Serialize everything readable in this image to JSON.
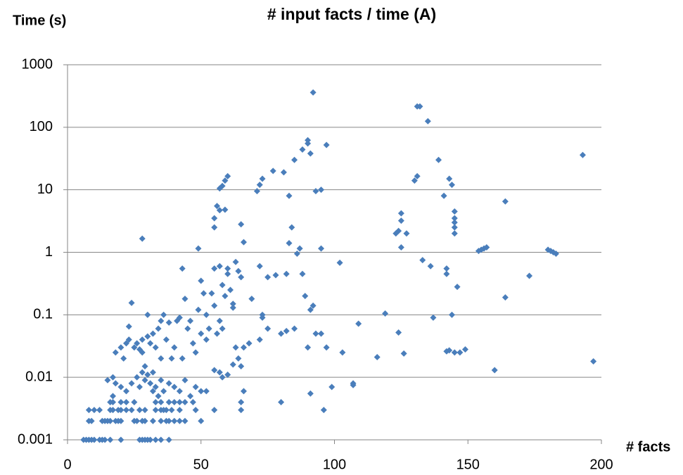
{
  "chart_data": {
    "type": "scatter",
    "title": "# input facts / time (A)",
    "y_label": "Time (s)",
    "x_label": "# facts",
    "log_y": true,
    "grid": true,
    "color": "#4a7ebb",
    "xlim": [
      0,
      200
    ],
    "xticks": [
      0,
      50,
      100,
      150,
      200
    ],
    "ylim": [
      0.001,
      1000
    ],
    "yticks": [
      0.001,
      0.01,
      0.1,
      1,
      10,
      100,
      1000
    ],
    "x": [
      6,
      7,
      8,
      9,
      10,
      12,
      13,
      14,
      16,
      20,
      27,
      28,
      29,
      30,
      31,
      33,
      35,
      38,
      8,
      9,
      13,
      14,
      15,
      16,
      18,
      19,
      20,
      25,
      26,
      28,
      29,
      32,
      35,
      37,
      38,
      40,
      42,
      44,
      50,
      8,
      10,
      12,
      16,
      17,
      19,
      20,
      22,
      24,
      27,
      29,
      33,
      35,
      36,
      37,
      39,
      42,
      48,
      55,
      65,
      96,
      16,
      17,
      22,
      25,
      33,
      35,
      38,
      40,
      42,
      44,
      47,
      65,
      80,
      15,
      17,
      18,
      20,
      22,
      24,
      26,
      27,
      28,
      29,
      30,
      31,
      32,
      33,
      34,
      35,
      36,
      38,
      40,
      42,
      44,
      46,
      48,
      50,
      52,
      55,
      57,
      58,
      60,
      62,
      66,
      91,
      99,
      107,
      107,
      17,
      20,
      18,
      20,
      21,
      22,
      23,
      23,
      24,
      25,
      26,
      27,
      28,
      28,
      29,
      30,
      30,
      31,
      32,
      32,
      33,
      34,
      35,
      35,
      36,
      37,
      38,
      39,
      40,
      41,
      42,
      43,
      43,
      44,
      45,
      46,
      47,
      48,
      49,
      50,
      50,
      51,
      52,
      52,
      53,
      54,
      55,
      56,
      57,
      58,
      59,
      60,
      61,
      62,
      63,
      64,
      65,
      66,
      68,
      72,
      73,
      75,
      80,
      82,
      85,
      90,
      91,
      92,
      93,
      95,
      97,
      103,
      109,
      116,
      119,
      124,
      126,
      142,
      143,
      145,
      147,
      149,
      160,
      197,
      49,
      55,
      56,
      55,
      55,
      57,
      58,
      60,
      62,
      63,
      64,
      65,
      66,
      65,
      57,
      59,
      57,
      58,
      59,
      60,
      71,
      72,
      73,
      69,
      72,
      73,
      75,
      78,
      82,
      84,
      83,
      86,
      87,
      88,
      88,
      89,
      90,
      90,
      91,
      93,
      95,
      95,
      97,
      77,
      81,
      83,
      85,
      92,
      102,
      123,
      124,
      125,
      125,
      125,
      127,
      130,
      131,
      131,
      132,
      135,
      133,
      136,
      137,
      139,
      141,
      142,
      143,
      144,
      144,
      145,
      145,
      145,
      145,
      145,
      146,
      142,
      154,
      155,
      156,
      157,
      164,
      164,
      173,
      180,
      181,
      182,
      183,
      193,
      28
    ],
    "values": [
      0.001,
      0.001,
      0.001,
      0.001,
      0.001,
      0.001,
      0.001,
      0.001,
      0.001,
      0.001,
      0.001,
      0.001,
      0.001,
      0.001,
      0.001,
      0.001,
      0.001,
      0.001,
      0.002,
      0.002,
      0.002,
      0.002,
      0.002,
      0.002,
      0.002,
      0.002,
      0.002,
      0.002,
      0.002,
      0.002,
      0.002,
      0.002,
      0.002,
      0.002,
      0.002,
      0.002,
      0.002,
      0.002,
      0.002,
      0.003,
      0.003,
      0.003,
      0.003,
      0.003,
      0.003,
      0.003,
      0.003,
      0.003,
      0.003,
      0.003,
      0.003,
      0.003,
      0.003,
      0.003,
      0.003,
      0.003,
      0.003,
      0.003,
      0.003,
      0.003,
      0.004,
      0.004,
      0.004,
      0.004,
      0.004,
      0.004,
      0.004,
      0.004,
      0.004,
      0.004,
      0.004,
      0.004,
      0.004,
      0.009,
      0.01,
      0.008,
      0.007,
      0.006,
      0.008,
      0.01,
      0.007,
      0.012,
      0.009,
      0.011,
      0.008,
      0.006,
      0.007,
      0.005,
      0.009,
      0.006,
      0.008,
      0.007,
      0.006,
      0.009,
      0.005,
      0.007,
      0.006,
      0.006,
      0.013,
      0.012,
      0.01,
      0.011,
      0.016,
      0.006,
      0.0055,
      0.007,
      0.008,
      0.0075,
      0.005,
      0.004,
      0.025,
      0.03,
      0.02,
      0.035,
      0.04,
      0.065,
      0.155,
      0.03,
      0.035,
      0.028,
      0.025,
      0.04,
      0.015,
      0.045,
      0.1,
      0.035,
      0.012,
      0.05,
      0.03,
      0.06,
      0.02,
      0.08,
      0.1,
      0.04,
      0.075,
      0.02,
      0.03,
      0.08,
      0.09,
      0.55,
      0.02,
      0.18,
      0.06,
      0.08,
      0.035,
      0.025,
      0.12,
      0.35,
      0.05,
      0.22,
      0.1,
      0.04,
      0.06,
      0.22,
      0.14,
      0.05,
      0.08,
      0.06,
      0.2,
      0.45,
      0.25,
      0.13,
      0.03,
      0.02,
      0.015,
      0.03,
      0.035,
      0.04,
      0.09,
      0.06,
      0.05,
      0.055,
      0.06,
      0.03,
      0.12,
      0.14,
      0.05,
      0.05,
      0.03,
      0.025,
      0.072,
      0.021,
      0.105,
      0.052,
      0.024,
      0.026,
      0.027,
      0.025,
      0.025,
      0.028,
      0.013,
      0.018,
      1.15,
      0.55,
      5.5,
      3.5,
      2.5,
      0.6,
      0.3,
      0.55,
      0.15,
      0.7,
      0.5,
      0.4,
      1.45,
      2.8,
      4.7,
      4.8,
      10.5,
      11.5,
      14,
      16.5,
      9.5,
      12,
      15,
      0.18,
      0.6,
      0.1,
      0.4,
      0.43,
      0.45,
      2.5,
      1.4,
      0.95,
      1.15,
      0.45,
      44,
      0.2,
      55,
      62,
      38,
      9.5,
      10,
      1.15,
      52,
      20,
      19,
      8,
      30,
      360,
      0.68,
      2,
      2.2,
      3.2,
      4.2,
      1.2,
      2,
      14,
      16.5,
      215,
      215,
      125,
      0.75,
      0.6,
      0.09,
      30,
      8,
      0.45,
      15,
      0.1,
      12,
      4.5,
      3.5,
      3,
      2.5,
      2,
      0.28,
      0.55,
      1.05,
      1.1,
      1.15,
      1.2,
      6.5,
      0.19,
      0.42,
      1.1,
      1.05,
      1,
      0.95,
      36,
      1.65
    ]
  }
}
